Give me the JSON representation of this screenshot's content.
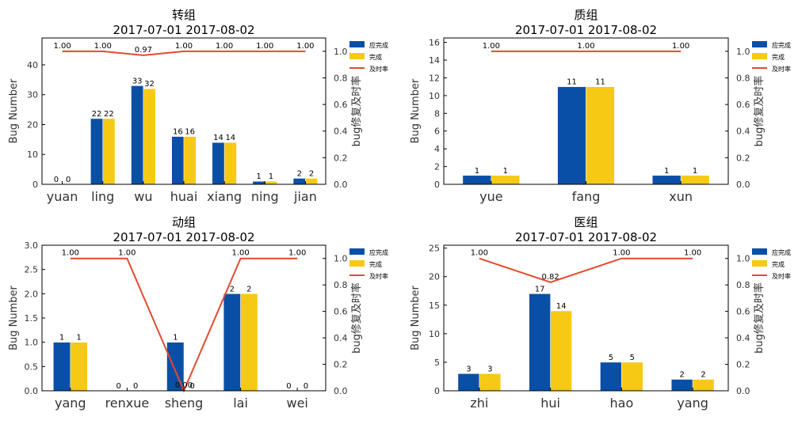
{
  "colors": {
    "should_complete": "#0a4fa6",
    "completed": "#f6c915",
    "rate_line": "#e34a2f"
  },
  "legend_labels": [
    "应完成",
    "完成",
    "及时率"
  ],
  "chart_data": [
    {
      "type": "bar",
      "title": "转组",
      "subtitle": "2017-07-01 2017-08-02",
      "ylabel": "Bug Number",
      "y2label": "bug修复及时率",
      "categories": [
        "yuan",
        "ling",
        "wu",
        "huai",
        "xiang",
        "ning",
        "jian"
      ],
      "ylim": [
        0,
        49
      ],
      "yticks": [
        "0",
        "10",
        "20",
        "30",
        "40"
      ],
      "y2lim": [
        0,
        1.1
      ],
      "y2ticks": [
        "0.0",
        "0.2",
        "0.4",
        "0.6",
        "0.8",
        "1.0"
      ],
      "legend_position": "right",
      "series": [
        {
          "name": "应完成",
          "values": [
            0,
            22,
            33,
            16,
            14,
            1,
            2
          ]
        },
        {
          "name": "完成",
          "values": [
            0,
            22,
            32,
            16,
            14,
            1,
            2
          ]
        }
      ],
      "rate": {
        "name": "及时率",
        "points": [
          {
            "category": "yuan",
            "value": 1.0,
            "label": "1.00"
          },
          {
            "category": "ling",
            "value": 1.0,
            "label": "1.00"
          },
          {
            "category": "wu",
            "value": 0.97,
            "label": "0.97"
          },
          {
            "category": "huai",
            "value": 1.0,
            "label": "1.00"
          },
          {
            "category": "xiang",
            "value": 1.0,
            "label": "1.00"
          },
          {
            "category": "ning",
            "value": 1.0,
            "label": "1.00"
          },
          {
            "category": "jian",
            "value": 1.0,
            "label": "1.00"
          }
        ]
      }
    },
    {
      "type": "bar",
      "title": "质组",
      "subtitle": "2017-07-01 2017-08-02",
      "ylabel": "Bug Number",
      "y2label": "bug修复及时率",
      "categories": [
        "yue",
        "fang",
        "xun"
      ],
      "ylim": [
        0,
        16.5
      ],
      "yticks": [
        "0",
        "2",
        "4",
        "6",
        "8",
        "10",
        "12",
        "14",
        "16"
      ],
      "y2lim": [
        0,
        1.1
      ],
      "y2ticks": [
        "0.0",
        "0.2",
        "0.4",
        "0.6",
        "0.8",
        "1.0"
      ],
      "legend_position": "right",
      "series": [
        {
          "name": "应完成",
          "values": [
            1,
            11,
            1
          ]
        },
        {
          "name": "完成",
          "values": [
            1,
            11,
            1
          ]
        }
      ],
      "rate": {
        "name": "及时率",
        "points": [
          {
            "category": "yue",
            "value": 1.0,
            "label": "1.00"
          },
          {
            "category": "fang",
            "value": 1.0,
            "label": "1.00"
          },
          {
            "category": "xun",
            "value": 1.0,
            "label": "1.00"
          }
        ]
      }
    },
    {
      "type": "bar",
      "title": "动组",
      "subtitle": "2017-07-01 2017-08-02",
      "ylabel": "Bug Number",
      "y2label": "bug修复及时率",
      "categories": [
        "yang",
        "renxue",
        "sheng",
        "lai",
        "wei"
      ],
      "ylim": [
        0,
        3.0
      ],
      "yticks": [
        "0.0",
        "0.5",
        "1.0",
        "1.5",
        "2.0",
        "2.5",
        "3.0"
      ],
      "y2lim": [
        0,
        1.1
      ],
      "y2ticks": [
        "0.0",
        "0.2",
        "0.4",
        "0.6",
        "0.8",
        "1.0"
      ],
      "legend_position": "right",
      "series": [
        {
          "name": "应完成",
          "values": [
            1,
            0,
            1,
            2,
            0
          ]
        },
        {
          "name": "完成",
          "values": [
            1,
            0,
            0,
            2,
            0
          ]
        }
      ],
      "rate": {
        "name": "及时率",
        "points": [
          {
            "category": "yang",
            "value": 1.0,
            "label": "1.00"
          },
          {
            "category": "renxue",
            "value": 1.0,
            "label": "1.00"
          },
          {
            "category": "sheng",
            "value": 0.0,
            "label": "0.00"
          },
          {
            "category": "lai",
            "value": 1.0,
            "label": "1.00"
          },
          {
            "category": "wei",
            "value": 1.0,
            "label": "1.00"
          }
        ]
      }
    },
    {
      "type": "bar",
      "title": "医组",
      "subtitle": "2017-07-01 2017-08-02",
      "ylabel": "Bug Number",
      "y2label": "bug修复及时率",
      "categories": [
        "zhi",
        "hui",
        "hao",
        "yang"
      ],
      "ylim": [
        0,
        25.5
      ],
      "yticks": [
        "0",
        "5",
        "10",
        "15",
        "20",
        "25"
      ],
      "y2lim": [
        0,
        1.1
      ],
      "y2ticks": [
        "0.0",
        "0.2",
        "0.4",
        "0.6",
        "0.8",
        "1.0"
      ],
      "legend_position": "right",
      "series": [
        {
          "name": "应完成",
          "values": [
            3,
            17,
            5,
            2
          ]
        },
        {
          "name": "完成",
          "values": [
            3,
            14,
            5,
            2
          ]
        }
      ],
      "rate": {
        "name": "及时率",
        "points": [
          {
            "category": "zhi",
            "value": 1.0,
            "label": "1.00"
          },
          {
            "category": "hui",
            "value": 0.82,
            "label": "0.82"
          },
          {
            "category": "hao",
            "value": 1.0,
            "label": "1.00"
          },
          {
            "category": "yang",
            "value": 1.0,
            "label": "1.00"
          }
        ]
      }
    }
  ]
}
